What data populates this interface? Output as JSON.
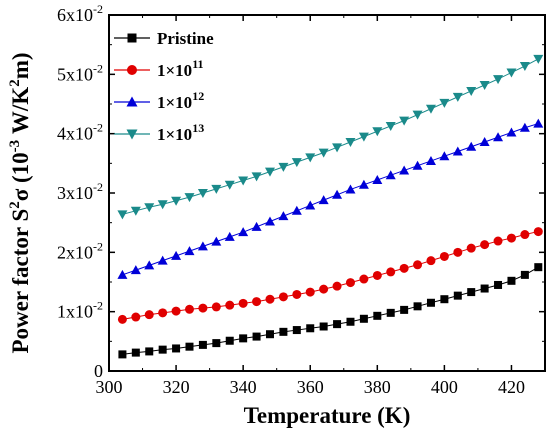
{
  "chart_data": {
    "type": "line",
    "xlabel": "Temperature (K)",
    "ylabel": {
      "prefix": "Power factor S",
      "sup1": "2",
      "sigma": "σ",
      "unit_open": " (10",
      "sup2": "-3",
      "unit_mid": " W/K",
      "sup3": "2",
      "unit_close": "m)"
    },
    "xlim": [
      300,
      430
    ],
    "ylim": [
      0,
      0.06
    ],
    "xticks": [
      {
        "value": 300,
        "label": "300"
      },
      {
        "value": 320,
        "label": "320"
      },
      {
        "value": 340,
        "label": "340"
      },
      {
        "value": 360,
        "label": "360"
      },
      {
        "value": 380,
        "label": "380"
      },
      {
        "value": 400,
        "label": "400"
      },
      {
        "value": 420,
        "label": "420"
      }
    ],
    "yticks": [
      {
        "value": 0,
        "mant": "0",
        "exp": ""
      },
      {
        "value": 0.01,
        "mant": "1x10",
        "exp": "-2"
      },
      {
        "value": 0.02,
        "mant": "2x10",
        "exp": "-2"
      },
      {
        "value": 0.03,
        "mant": "3x10",
        "exp": "-2"
      },
      {
        "value": 0.04,
        "mant": "4x10",
        "exp": "-2"
      },
      {
        "value": 0.05,
        "mant": "5x10",
        "exp": "-2"
      },
      {
        "value": 0.06,
        "mant": "6x10",
        "exp": "-2"
      }
    ],
    "legend_position": "top-left",
    "x": [
      304,
      308,
      312,
      316,
      320,
      324,
      328,
      332,
      336,
      340,
      344,
      348,
      352,
      356,
      360,
      364,
      368,
      372,
      376,
      380,
      384,
      388,
      392,
      396,
      400,
      404,
      408,
      412,
      416,
      420,
      424,
      428
    ],
    "series": [
      {
        "name": "Pristine",
        "mant": "",
        "exp": "",
        "marker": "square",
        "color": "#000000",
        "values": [
          0.0028,
          0.0031,
          0.0033,
          0.0036,
          0.0038,
          0.0041,
          0.0044,
          0.0047,
          0.0051,
          0.0055,
          0.0058,
          0.0062,
          0.0066,
          0.0069,
          0.0072,
          0.0075,
          0.0079,
          0.0083,
          0.0088,
          0.0093,
          0.0098,
          0.0103,
          0.0109,
          0.0115,
          0.0121,
          0.0127,
          0.0133,
          0.0139,
          0.0145,
          0.0152,
          0.0162,
          0.0175
        ]
      },
      {
        "name": "",
        "mant": "1×10",
        "exp": "11",
        "marker": "circle",
        "color": "#e00000",
        "values": [
          0.0087,
          0.0091,
          0.0095,
          0.0098,
          0.0101,
          0.0104,
          0.0106,
          0.0108,
          0.0111,
          0.0114,
          0.0117,
          0.0121,
          0.0125,
          0.0129,
          0.0133,
          0.0138,
          0.0143,
          0.0149,
          0.0155,
          0.0161,
          0.0167,
          0.0173,
          0.0179,
          0.0186,
          0.0193,
          0.02,
          0.0207,
          0.0213,
          0.0219,
          0.0224,
          0.023,
          0.0235
        ]
      },
      {
        "name": "",
        "mant": "1×10",
        "exp": "12",
        "marker": "triangle-up",
        "color": "#0000d8",
        "values": [
          0.0162,
          0.017,
          0.0178,
          0.0186,
          0.0194,
          0.0202,
          0.021,
          0.0218,
          0.0226,
          0.0234,
          0.0243,
          0.0252,
          0.0261,
          0.027,
          0.0279,
          0.0288,
          0.0297,
          0.0306,
          0.0314,
          0.0322,
          0.033,
          0.0338,
          0.0346,
          0.0354,
          0.0362,
          0.037,
          0.0378,
          0.0386,
          0.0394,
          0.0402,
          0.041,
          0.0417
        ]
      },
      {
        "name": "",
        "mant": "1×10",
        "exp": "13",
        "marker": "triangle-down",
        "color": "#1a8a8a",
        "values": [
          0.0264,
          0.027,
          0.0276,
          0.0281,
          0.0287,
          0.0293,
          0.03,
          0.0307,
          0.0314,
          0.0321,
          0.0328,
          0.0336,
          0.0344,
          0.0352,
          0.036,
          0.0368,
          0.0377,
          0.0386,
          0.0395,
          0.0404,
          0.0413,
          0.0422,
          0.0432,
          0.0442,
          0.0452,
          0.0462,
          0.0472,
          0.0482,
          0.0492,
          0.0503,
          0.0514,
          0.0526
        ]
      }
    ]
  }
}
